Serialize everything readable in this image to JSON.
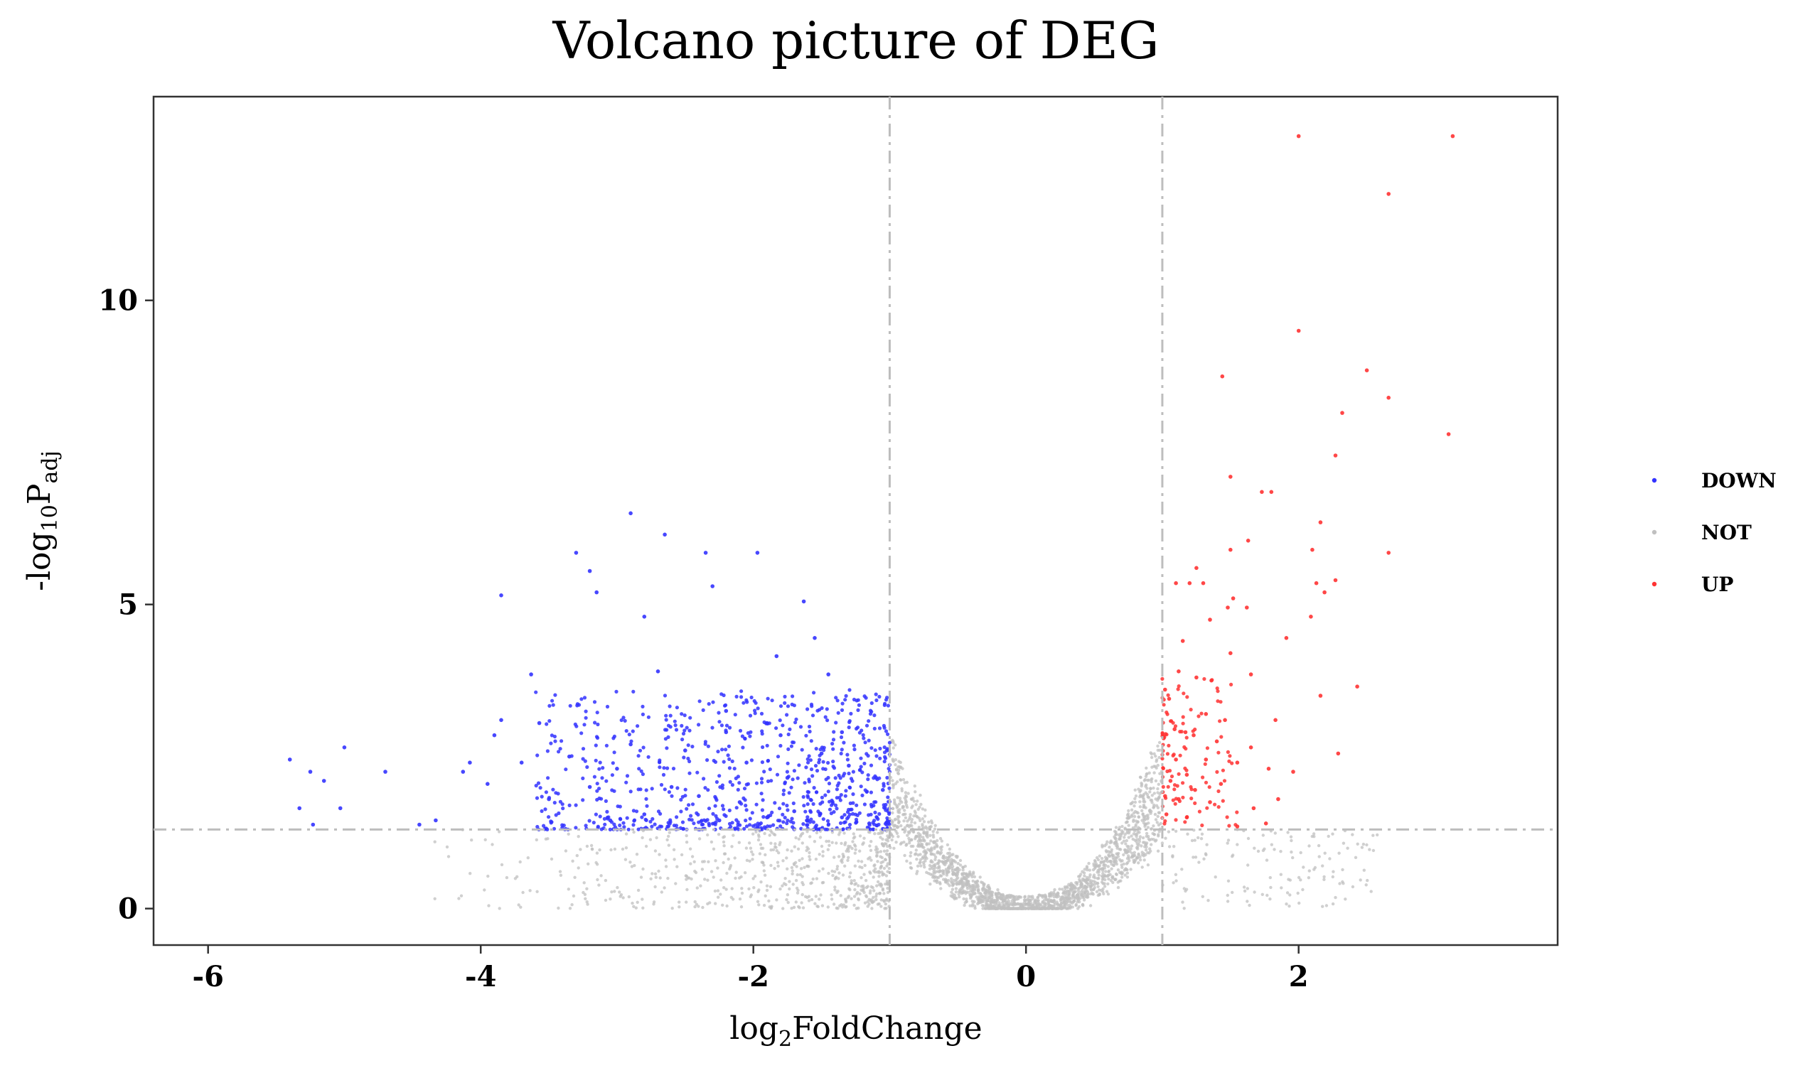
{
  "chart_data": {
    "type": "scatter",
    "title": "Volcano picture of DEG",
    "xlabel_base": "log",
    "xlabel_sub": "2",
    "xlabel_tail": "FoldChange",
    "ylabel_base": "-log",
    "ylabel_sub": "10",
    "ylabel_tail": "P",
    "ylabel_tail_sub": "adj",
    "xlim": [
      -6.4,
      3.9
    ],
    "ylim": [
      -0.6,
      13.35
    ],
    "x_ticks": [
      -6,
      -4,
      -2,
      0,
      2
    ],
    "x_tick_labels": [
      "-6",
      "-4",
      "-2",
      "0",
      "2"
    ],
    "y_ticks": [
      0,
      5,
      10
    ],
    "y_tick_labels": [
      "0",
      "5",
      "10"
    ],
    "thresholds": {
      "log2fc": [
        -1,
        1
      ],
      "neglog10padj": 1.3
    },
    "grid": false,
    "legend_position": "right",
    "series": [
      {
        "name": "DOWN",
        "color": "#3333ff"
      },
      {
        "name": "NOT",
        "color": "#c0c0c0"
      },
      {
        "name": "UP",
        "color": "#ff3333"
      }
    ],
    "highlighted_points": {
      "UP": [
        [
          2.0,
          12.7
        ],
        [
          3.13,
          12.7
        ],
        [
          2.66,
          11.75
        ],
        [
          2.0,
          9.5
        ],
        [
          2.5,
          8.85
        ],
        [
          1.44,
          8.75
        ],
        [
          2.66,
          8.4
        ],
        [
          2.32,
          8.15
        ],
        [
          3.1,
          7.8
        ],
        [
          2.27,
          7.45
        ],
        [
          1.5,
          7.1
        ],
        [
          1.73,
          6.85
        ],
        [
          1.8,
          6.85
        ],
        [
          2.16,
          6.35
        ],
        [
          1.63,
          6.05
        ],
        [
          1.5,
          5.9
        ],
        [
          2.1,
          5.9
        ],
        [
          2.66,
          5.85
        ],
        [
          1.25,
          5.6
        ],
        [
          1.1,
          5.35
        ],
        [
          1.2,
          5.35
        ],
        [
          1.3,
          5.35
        ],
        [
          2.27,
          5.4
        ],
        [
          2.13,
          5.35
        ],
        [
          2.19,
          5.2
        ],
        [
          1.52,
          5.1
        ],
        [
          1.48,
          4.95
        ],
        [
          1.62,
          4.95
        ],
        [
          2.09,
          4.8
        ],
        [
          1.35,
          4.75
        ],
        [
          1.91,
          4.45
        ],
        [
          1.15,
          4.4
        ],
        [
          1.5,
          4.2
        ],
        [
          1.12,
          3.9
        ],
        [
          1.65,
          3.85
        ],
        [
          1.25,
          3.8
        ],
        [
          1.36,
          3.75
        ],
        [
          2.43,
          3.65
        ],
        [
          1.02,
          3.6
        ],
        [
          1.05,
          3.45
        ],
        [
          2.16,
          3.5
        ],
        [
          1.32,
          3.2
        ],
        [
          1.46,
          3.1
        ],
        [
          1.83,
          3.1
        ],
        [
          1.09,
          2.95
        ],
        [
          1.17,
          2.9
        ],
        [
          1.23,
          2.85
        ],
        [
          1.01,
          2.8
        ],
        [
          1.4,
          2.75
        ],
        [
          1.65,
          2.65
        ],
        [
          2.29,
          2.55
        ],
        [
          1.1,
          2.45
        ],
        [
          1.32,
          2.45
        ],
        [
          1.55,
          2.4
        ],
        [
          1.78,
          2.3
        ],
        [
          1.96,
          2.25
        ],
        [
          1.18,
          2.2
        ],
        [
          1.06,
          2.1
        ],
        [
          1.43,
          2.05
        ],
        [
          1.24,
          1.95
        ],
        [
          1.02,
          1.85
        ],
        [
          1.12,
          1.8
        ],
        [
          1.35,
          1.75
        ],
        [
          1.85,
          1.8
        ],
        [
          1.67,
          1.65
        ],
        [
          1.03,
          1.55
        ],
        [
          1.18,
          1.5
        ],
        [
          1.76,
          1.4
        ],
        [
          1.55,
          1.35
        ]
      ],
      "DOWN": [
        [
          -5.4,
          2.45
        ],
        [
          -5.25,
          2.25
        ],
        [
          -5.15,
          2.1
        ],
        [
          -5.0,
          2.65
        ],
        [
          -4.7,
          2.25
        ],
        [
          -5.33,
          1.65
        ],
        [
          -5.03,
          1.65
        ],
        [
          -5.23,
          1.38
        ],
        [
          -4.45,
          1.38
        ],
        [
          -4.33,
          1.45
        ],
        [
          -4.08,
          2.4
        ],
        [
          -4.13,
          2.25
        ],
        [
          -3.95,
          2.05
        ],
        [
          -3.85,
          3.1
        ],
        [
          -3.9,
          2.85
        ],
        [
          -3.85,
          5.15
        ],
        [
          -3.63,
          3.85
        ],
        [
          -3.57,
          3.05
        ],
        [
          -3.3,
          5.85
        ],
        [
          -3.2,
          5.55
        ],
        [
          -3.15,
          5.2
        ],
        [
          -2.9,
          6.5
        ],
        [
          -2.8,
          4.8
        ],
        [
          -2.65,
          6.15
        ],
        [
          -2.35,
          5.85
        ],
        [
          -2.3,
          5.3
        ],
        [
          -1.97,
          5.85
        ],
        [
          -1.83,
          4.15
        ],
        [
          -1.63,
          5.05
        ],
        [
          -1.55,
          4.45
        ],
        [
          -1.45,
          3.85
        ],
        [
          -1.02,
          2.6
        ],
        [
          -2.7,
          3.9
        ],
        [
          -2.2,
          3.25
        ],
        [
          -1.9,
          3.05
        ],
        [
          -1.8,
          2.85
        ],
        [
          -1.5,
          2.55
        ],
        [
          -1.3,
          2.35
        ],
        [
          -1.1,
          2.15
        ],
        [
          -1.05,
          1.95
        ],
        [
          -3.0,
          2.3
        ],
        [
          -3.2,
          2.0
        ],
        [
          -3.5,
          1.8
        ],
        [
          -2.6,
          2.0
        ],
        [
          -2.4,
          1.85
        ],
        [
          -2.1,
          1.75
        ],
        [
          -1.7,
          1.6
        ],
        [
          -1.35,
          1.5
        ],
        [
          -1.15,
          1.4
        ],
        [
          -2.8,
          1.55
        ],
        [
          -3.05,
          1.45
        ],
        [
          -2.25,
          1.45
        ],
        [
          -1.9,
          1.5
        ],
        [
          -1.6,
          1.45
        ],
        [
          -2.05,
          2.4
        ],
        [
          -1.75,
          2.15
        ],
        [
          -2.5,
          2.6
        ],
        [
          -2.9,
          2.7
        ],
        [
          -3.35,
          2.5
        ],
        [
          -3.7,
          2.4
        ],
        [
          -2.2,
          2.9
        ],
        [
          -1.35,
          2.9
        ]
      ]
    }
  }
}
